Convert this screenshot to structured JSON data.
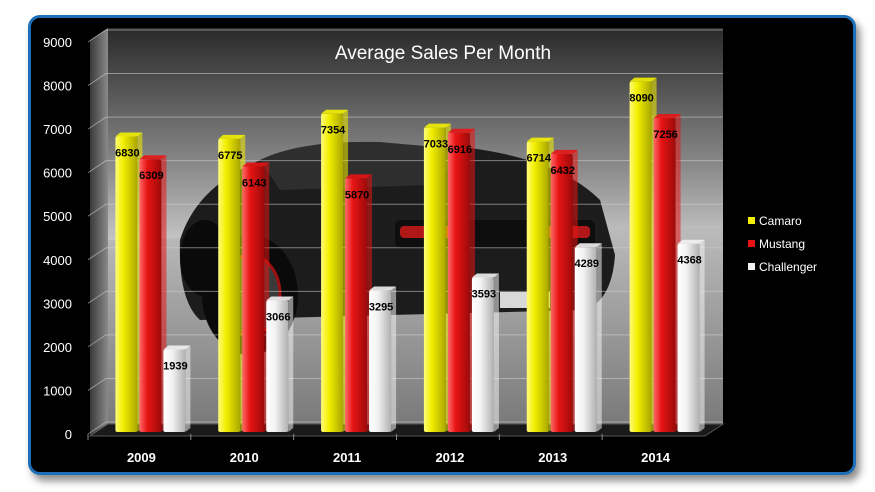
{
  "chart_data": {
    "type": "bar",
    "title": "Average Sales Per Month",
    "categories": [
      "2009",
      "2010",
      "2011",
      "2012",
      "2013",
      "2014"
    ],
    "series": [
      {
        "name": "Camaro",
        "color": "#f2ef00",
        "values": [
          6830,
          6775,
          7354,
          7033,
          6714,
          8090
        ]
      },
      {
        "name": "Mustang",
        "color": "#e81414",
        "values": [
          6309,
          6143,
          5870,
          6916,
          6432,
          7256
        ]
      },
      {
        "name": "Challenger",
        "color": "#f2f2f2",
        "values": [
          1939,
          3066,
          3295,
          3593,
          4289,
          4368
        ]
      }
    ],
    "ylim": [
      0,
      9000
    ],
    "yticks": [
      0,
      1000,
      2000,
      3000,
      4000,
      5000,
      6000,
      7000,
      8000,
      9000
    ],
    "xlabel": "",
    "ylabel": "",
    "grid": true,
    "legend_position": "right",
    "background": "3D chart with photo of a black car on a road"
  }
}
